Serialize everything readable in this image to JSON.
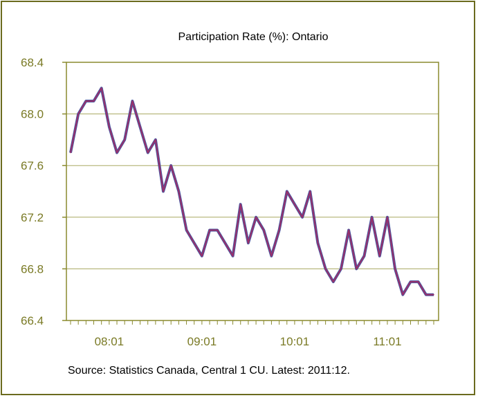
{
  "chart_data": {
    "type": "line",
    "title": "Participation Rate (%): Ontario",
    "source_note": "Source: Statistics Canada, Central 1 CU. Latest: 2011:12.",
    "xlabel": "",
    "ylabel": "",
    "ylim": [
      66.4,
      68.4
    ],
    "y_ticks": [
      "68.4",
      "68.0",
      "67.6",
      "67.2",
      "66.8",
      "66.4"
    ],
    "x_tick_labels": [
      {
        "label": "08:01",
        "index": 5
      },
      {
        "label": "09:01",
        "index": 17
      },
      {
        "label": "10:01",
        "index": 29
      },
      {
        "label": "11:01",
        "index": 41
      }
    ],
    "grid": true,
    "legend": "none",
    "colors": {
      "line": "#9a2f6a",
      "line_shadow": "#4a57a0",
      "axis": "#8a8a2e",
      "grid": "#a8a860",
      "frame": "#6b6b1e"
    },
    "series": [
      {
        "values": [
          67.7,
          68.0,
          68.1,
          68.1,
          68.2,
          67.9,
          67.7,
          67.8,
          68.1,
          67.9,
          67.7,
          67.8,
          67.4,
          67.6,
          67.4,
          67.1,
          67.0,
          66.9,
          67.1,
          67.1,
          67.0,
          66.9,
          67.3,
          67.0,
          67.2,
          67.1,
          66.9,
          67.1,
          67.4,
          67.3,
          67.2,
          67.4,
          67.0,
          66.8,
          66.7,
          66.8,
          67.1,
          66.8,
          66.9,
          67.2,
          66.9,
          67.2,
          66.8,
          66.6,
          66.7,
          66.7,
          66.6,
          66.6
        ]
      }
    ]
  }
}
